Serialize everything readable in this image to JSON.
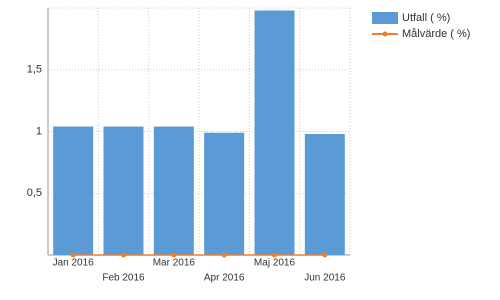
{
  "chart_data": {
    "type": "combo",
    "categories": [
      "Jan 2016",
      "Feb 2016",
      "Mar 2016",
      "Apr 2016",
      "Maj 2016",
      "Jun 2016"
    ],
    "series": [
      {
        "name": "Utfall ( %)",
        "type": "bar",
        "color": "#5b9bd5",
        "values": [
          1.04,
          1.04,
          1.04,
          0.99,
          1.98,
          0.98
        ]
      },
      {
        "name": "Målvärde ( %)",
        "type": "line",
        "color": "#ed7d31",
        "values": [
          0,
          0,
          0,
          0,
          0,
          0
        ]
      }
    ],
    "ylim": [
      0,
      2
    ],
    "yticks": [
      {
        "value": 0.5,
        "label": "0,5"
      },
      1,
      {
        "value": 1.5,
        "label": "1,5"
      }
    ],
    "grid": true,
    "legend": "top-right"
  }
}
